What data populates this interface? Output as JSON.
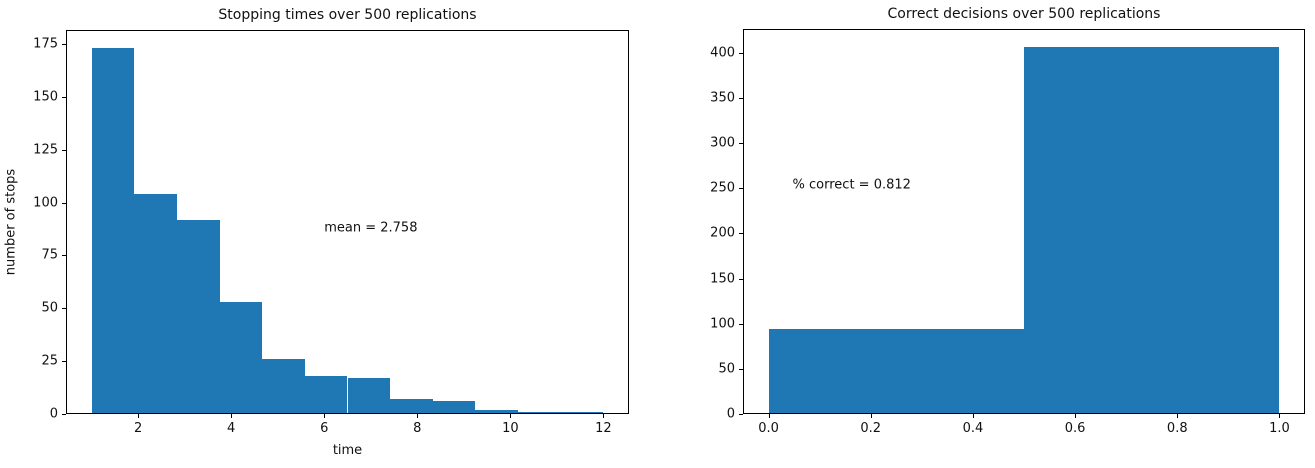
{
  "figure": {
    "background": "#ffffff",
    "bar_color": "#1f77b4",
    "axis_color": "#000000",
    "text_color": "#111111"
  },
  "chart_data": [
    {
      "id": "stopping-times-histogram",
      "type": "bar",
      "subtype": "histogram",
      "title": "Stopping times over 500 replications",
      "xlabel": "time",
      "ylabel": "number of stops",
      "bin_edges": [
        1.0,
        1.91667,
        2.83333,
        3.75,
        4.66667,
        5.58333,
        6.5,
        7.41667,
        8.33333,
        9.25,
        10.16667,
        11.08333,
        12.0
      ],
      "counts": [
        173,
        104,
        92,
        53,
        26,
        18,
        17,
        7,
        6,
        2,
        1,
        1
      ],
      "xlim": [
        0.45,
        12.55
      ],
      "ylim": [
        0,
        181.65
      ],
      "xticks": {
        "values": [
          2,
          4,
          6,
          8,
          10,
          12
        ],
        "labels": [
          "2",
          "4",
          "6",
          "8",
          "10",
          "12"
        ]
      },
      "yticks": {
        "values": [
          0,
          25,
          50,
          75,
          100,
          125,
          150,
          175
        ],
        "labels": [
          "0",
          "25",
          "50",
          "75",
          "100",
          "125",
          "150",
          "175"
        ]
      },
      "annotation": {
        "text": "mean = 2.758",
        "x": 6.0,
        "y": 88
      },
      "grid": false,
      "legend": null
    },
    {
      "id": "correct-decisions-histogram",
      "type": "bar",
      "subtype": "histogram",
      "title": "Correct decisions over 500 replications",
      "xlabel": "",
      "ylabel": "",
      "bin_edges": [
        0.0,
        0.5,
        1.0
      ],
      "counts": [
        94,
        406
      ],
      "xlim": [
        -0.05,
        1.05
      ],
      "ylim": [
        0,
        426.3
      ],
      "xticks": {
        "values": [
          0.0,
          0.2,
          0.4,
          0.6,
          0.8,
          1.0
        ],
        "labels": [
          "0.0",
          "0.2",
          "0.4",
          "0.6",
          "0.8",
          "1.0"
        ]
      },
      "yticks": {
        "values": [
          0,
          50,
          100,
          150,
          200,
          250,
          300,
          350,
          400
        ],
        "labels": [
          "0",
          "50",
          "100",
          "150",
          "200",
          "250",
          "300",
          "350",
          "400"
        ]
      },
      "annotation": {
        "text": "% correct = 0.812",
        "x": 0.047,
        "y": 254
      },
      "grid": false,
      "legend": null
    }
  ]
}
